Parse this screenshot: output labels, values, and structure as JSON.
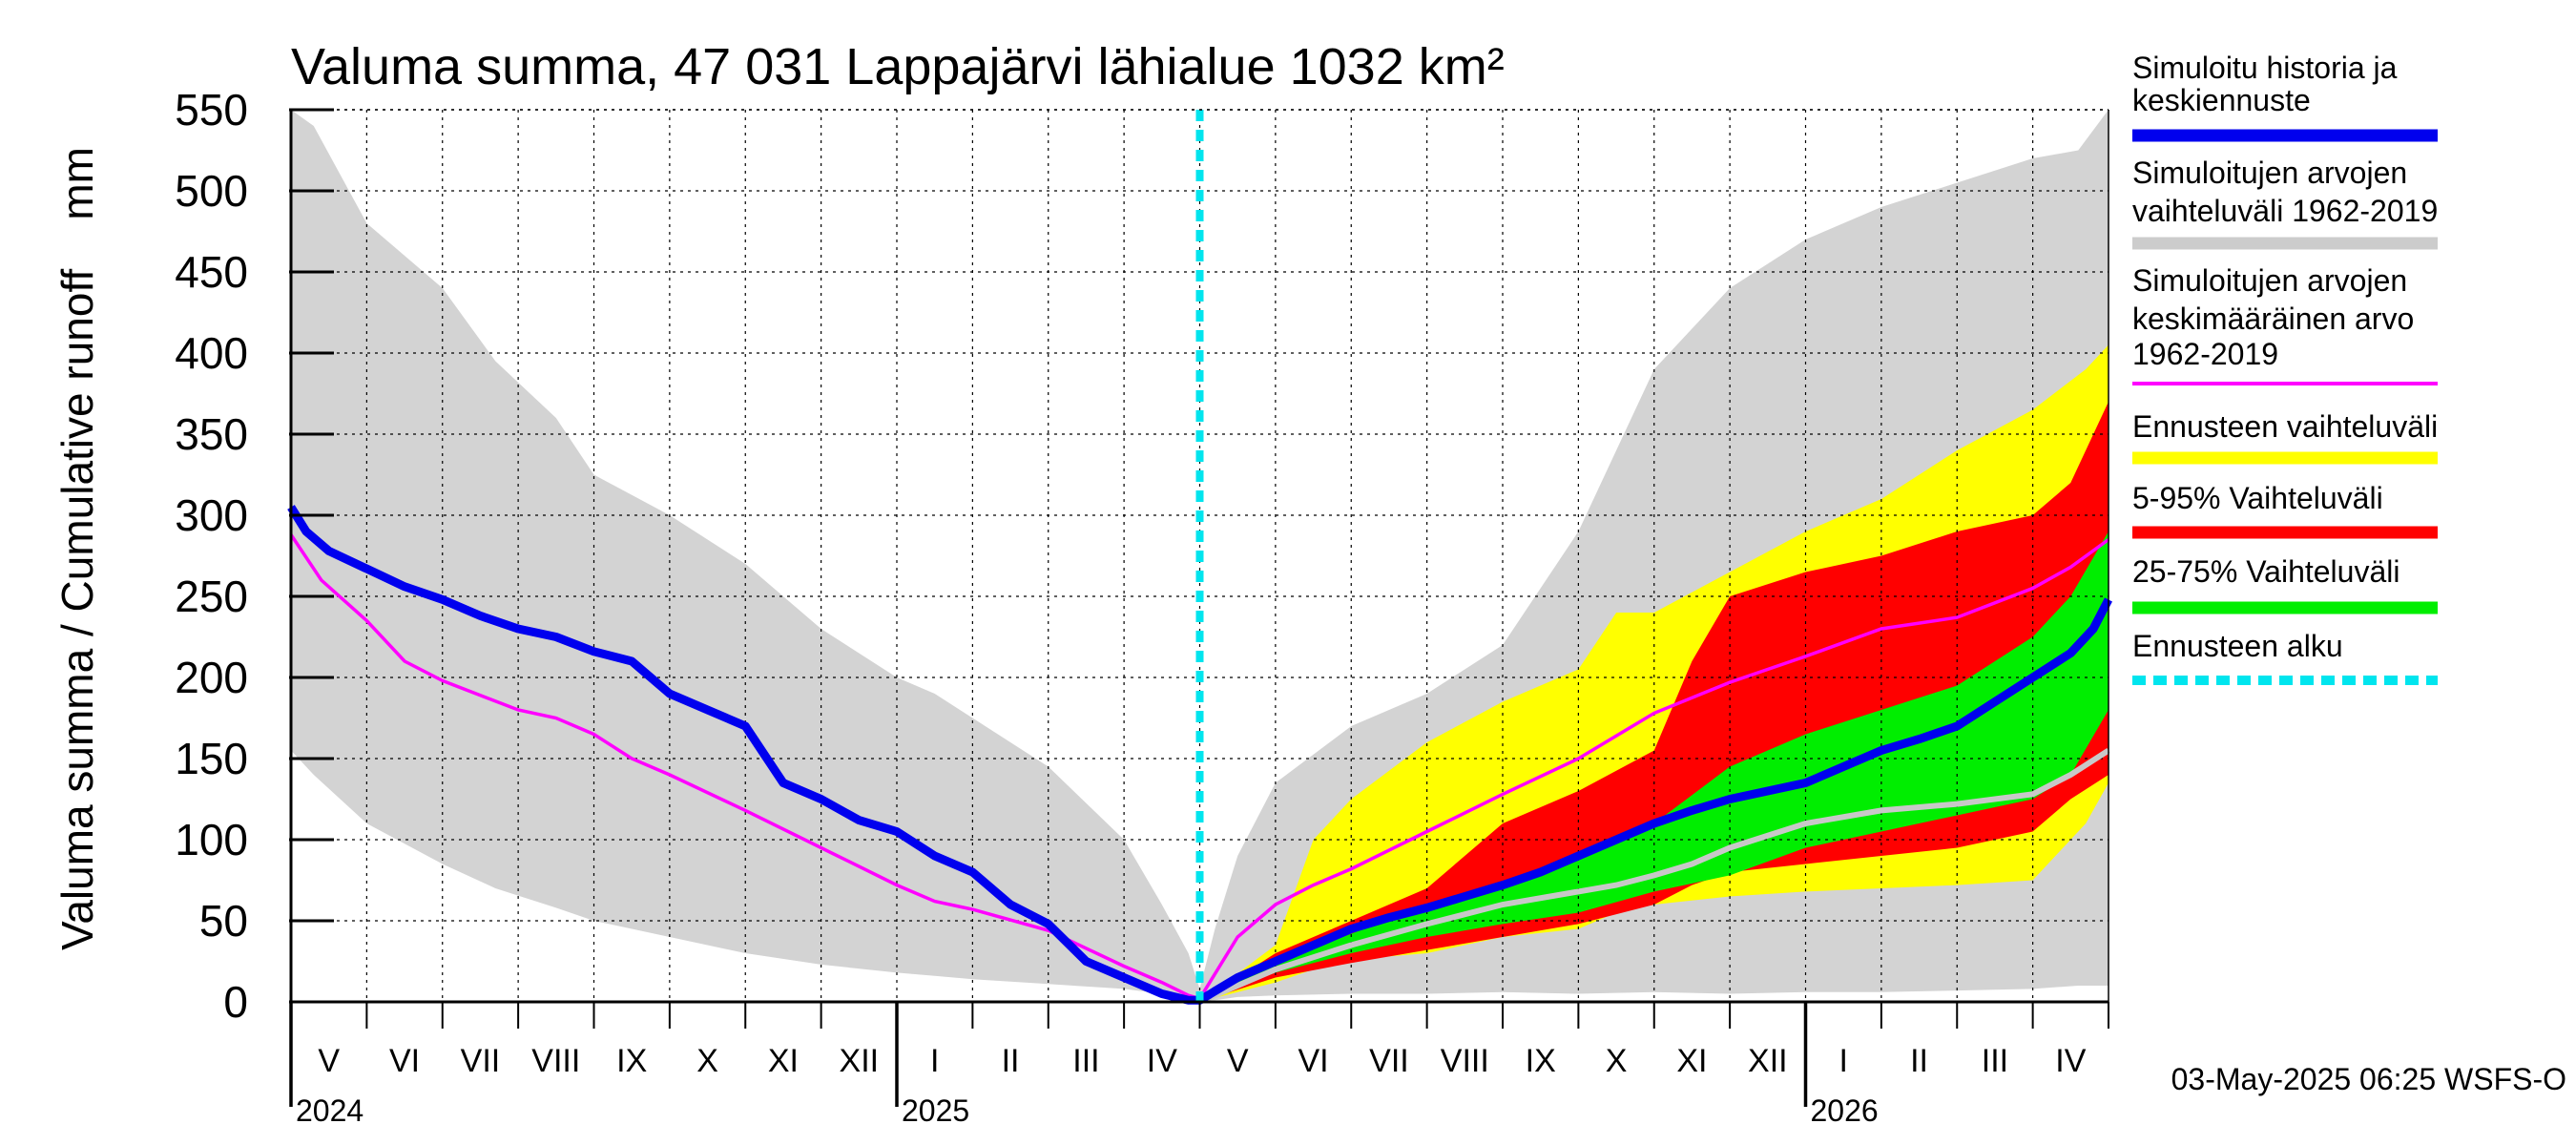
{
  "chart_data": {
    "type": "area",
    "title": "Valuma summa, 47 031 Lappajärvi lähialue 1032 km²",
    "ylabel": "Valuma summa / Cumulative runoff    mm",
    "ylim": [
      0,
      550
    ],
    "yticks": [
      0,
      50,
      100,
      150,
      200,
      250,
      300,
      350,
      400,
      450,
      500,
      550
    ],
    "xlim": [
      0,
      24
    ],
    "month_labels": [
      "V",
      "VI",
      "VII",
      "VIII",
      "IX",
      "X",
      "XI",
      "XII",
      "I",
      "II",
      "III",
      "IV",
      "V",
      "VI",
      "VII",
      "VIII",
      "IX",
      "X",
      "XI",
      "XII",
      "I",
      "II",
      "III",
      "IV"
    ],
    "year_labels": [
      {
        "text": "2024",
        "x": 0
      },
      {
        "text": "2025",
        "x": 8
      },
      {
        "text": "2026",
        "x": 20
      }
    ],
    "forecast_start": 12,
    "footer": "03-May-2025 06:25 WSFS-O",
    "grid": true,
    "legend": {
      "position": "right",
      "entries": [
        {
          "label": [
            "Simuloitu historia ja",
            "keskiennuste"
          ],
          "color": "#0000ee",
          "style": "thick"
        },
        {
          "label": [
            "Simuloitujen arvojen",
            "vaihteluväli 1962-2019"
          ],
          "color": "#cccccc",
          "style": "thick"
        },
        {
          "label": [
            "Simuloitujen arvojen",
            "keskimääräinen arvo",
            "   1962-2019"
          ],
          "color": "#ff00ff",
          "style": "thin"
        },
        {
          "label": [
            "Ennusteen vaihteluväli"
          ],
          "color": "#ffff00",
          "style": "thick"
        },
        {
          "label": [
            "5-95% Vaihteluväli"
          ],
          "color": "#ff0000",
          "style": "thick"
        },
        {
          "label": [
            "25-75% Vaihteluväli"
          ],
          "color": "#00ee00",
          "style": "thick"
        },
        {
          "label": [
            "Ennusteen alku"
          ],
          "color": "#00e5ee",
          "style": "dashed"
        }
      ]
    },
    "series": {
      "hist_range": {
        "name": "Simuloitujen arvojen vaihteluväli 1962-2019",
        "color": "#d3d3d3",
        "x": [
          0,
          0.3,
          1,
          2,
          2.7,
          3.5,
          4,
          5,
          6,
          7,
          8,
          8.5,
          9,
          10,
          11,
          11.5,
          11.85,
          12,
          12.2,
          12.5,
          13,
          14,
          15,
          16,
          17,
          18,
          19,
          20,
          21,
          22,
          23,
          23.6,
          24
        ],
        "upper": [
          550,
          540,
          480,
          440,
          395,
          360,
          325,
          300,
          270,
          230,
          200,
          190,
          175,
          145,
          100,
          60,
          30,
          8,
          45,
          90,
          135,
          170,
          190,
          220,
          290,
          390,
          440,
          470,
          490,
          505,
          520,
          525,
          550
        ],
        "lower": [
          155,
          140,
          110,
          85,
          70,
          58,
          50,
          40,
          30,
          23,
          18,
          16,
          14,
          11,
          8,
          5,
          3,
          1,
          1,
          3,
          4,
          5,
          5,
          6,
          5,
          6,
          5,
          6,
          6,
          7,
          8,
          10,
          10
        ]
      },
      "forecast_range": {
        "name": "Ennusteen vaihteluväli",
        "color": "#ffff00",
        "x": [
          12,
          13,
          13.5,
          14,
          15,
          16,
          17,
          17.5,
          18,
          19,
          20,
          21,
          22,
          23,
          23.7,
          24
        ],
        "upper": [
          0,
          35,
          100,
          125,
          160,
          185,
          205,
          240,
          240,
          265,
          290,
          310,
          340,
          365,
          390,
          405
        ],
        "lower": [
          0,
          12,
          20,
          26,
          30,
          40,
          45,
          55,
          60,
          65,
          68,
          70,
          72,
          75,
          110,
          135
        ]
      },
      "p5_95": {
        "name": "5-95% Vaihteluväli",
        "color": "#ff0000",
        "x": [
          12,
          13,
          14,
          15,
          16,
          17,
          18,
          18.5,
          19,
          20,
          21,
          22,
          23,
          23.5,
          24
        ],
        "upper": [
          0,
          30,
          50,
          70,
          110,
          130,
          155,
          210,
          250,
          265,
          275,
          290,
          300,
          320,
          370
        ],
        "lower": [
          0,
          15,
          24,
          32,
          40,
          48,
          60,
          72,
          80,
          85,
          90,
          95,
          105,
          125,
          140
        ]
      },
      "p25_75": {
        "name": "25-75% Vaihteluväli",
        "color": "#00ee00",
        "x": [
          12,
          13,
          14,
          15,
          16,
          17,
          18,
          19,
          20,
          21,
          22,
          23,
          23.5,
          24
        ],
        "upper": [
          0,
          25,
          42,
          60,
          72,
          90,
          110,
          145,
          165,
          180,
          195,
          225,
          250,
          290
        ],
        "lower": [
          0,
          18,
          30,
          40,
          48,
          55,
          68,
          78,
          95,
          105,
          115,
          125,
          140,
          180
        ]
      },
      "hist_mean": {
        "name": "Simuloitujen arvojen keskimääräinen arvo 1962-2019",
        "color": "#ff00ff",
        "x": [
          0,
          0.4,
          1,
          1.5,
          2,
          3,
          3.5,
          4,
          4.5,
          5,
          6,
          7,
          8,
          8.5,
          9,
          10,
          11,
          11.5,
          11.85,
          12,
          12.5,
          13,
          13.5,
          14,
          15,
          16,
          17,
          18,
          19,
          20,
          21,
          22,
          23,
          23.5,
          24
        ],
        "y": [
          288,
          260,
          235,
          210,
          198,
          180,
          175,
          165,
          150,
          140,
          118,
          95,
          72,
          62,
          57,
          44,
          22,
          12,
          4,
          2,
          40,
          60,
          72,
          82,
          105,
          128,
          150,
          178,
          197,
          213,
          230,
          237,
          255,
          268,
          285
        ]
      },
      "median_forecast_grey": {
        "name": "Simuloitujen arvojen mediaani (ennuste)",
        "color": "#c8c8c8",
        "x": [
          12,
          13,
          14,
          15,
          16,
          17,
          17.5,
          18,
          18.5,
          19,
          20,
          21,
          22,
          23,
          23.5,
          24
        ],
        "y": [
          0,
          20,
          35,
          48,
          60,
          68,
          72,
          78,
          85,
          95,
          110,
          118,
          122,
          128,
          140,
          155
        ]
      },
      "simulated": {
        "name": "Simuloitu historia ja keskiennuste",
        "color": "#0000ee",
        "x": [
          0,
          0.2,
          0.5,
          1,
          1.5,
          2,
          2.5,
          3,
          3.5,
          4,
          4.5,
          5,
          5.5,
          6,
          6.5,
          7,
          7.5,
          8,
          8.5,
          9,
          9.5,
          10,
          10.5,
          11,
          11.5,
          11.85,
          12,
          12.5,
          13,
          13.5,
          14,
          14.5,
          15,
          15.5,
          16,
          16.5,
          17,
          17.5,
          18,
          18.5,
          19,
          19.5,
          20,
          20.5,
          21,
          21.5,
          22,
          22.5,
          23,
          23.5,
          23.8,
          24
        ],
        "y": [
          305,
          290,
          278,
          267,
          256,
          248,
          238,
          230,
          225,
          216,
          210,
          190,
          180,
          170,
          135,
          125,
          112,
          105,
          90,
          80,
          60,
          48,
          25,
          15,
          5,
          1,
          1,
          15,
          25,
          35,
          45,
          52,
          58,
          65,
          72,
          80,
          90,
          100,
          110,
          118,
          125,
          130,
          135,
          145,
          155,
          162,
          170,
          185,
          200,
          215,
          230,
          248
        ]
      }
    }
  }
}
